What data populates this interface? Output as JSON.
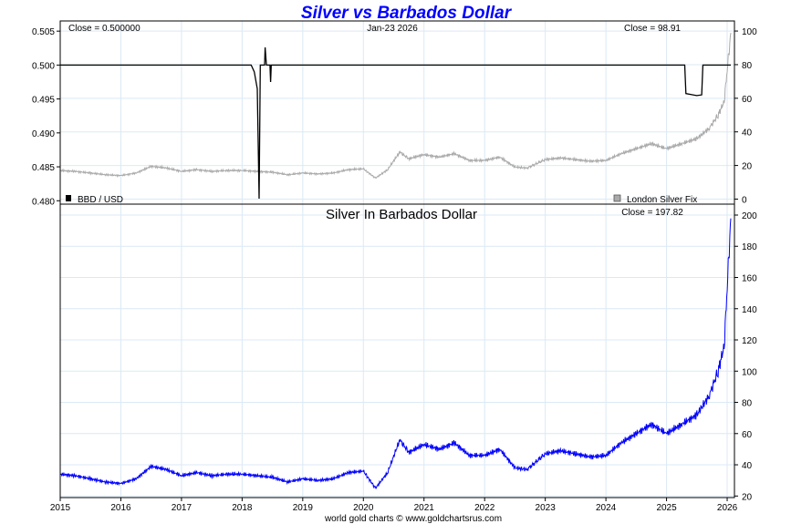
{
  "chart_data": [
    {
      "type": "line",
      "title": "Silver vs Barbados Dollar",
      "date_label": "Jan-23  2026",
      "left_close": "Close = 0.500000",
      "right_close": "Close = 98.91",
      "legend_left": "BBD / USD",
      "legend_right": "London Silver Fix",
      "left_ylim": [
        0.4795,
        0.5065
      ],
      "left_ticks": [
        "0.505",
        "0.500",
        "0.495",
        "0.490",
        "0.485",
        "0.480"
      ],
      "right_ylim": [
        -3,
        106
      ],
      "right_ticks": [
        "100",
        "80",
        "60",
        "40",
        "20",
        "0"
      ],
      "series": [
        {
          "name": "BBD / USD",
          "axis": "left",
          "color": "#000000",
          "points": [
            [
              2015.0,
              0.5
            ],
            [
              2018.15,
              0.5
            ],
            [
              2018.2,
              0.499
            ],
            [
              2018.25,
              0.4965
            ],
            [
              2018.28,
              0.4803
            ],
            [
              2018.3,
              0.5
            ],
            [
              2018.37,
              0.5
            ],
            [
              2018.38,
              0.5026
            ],
            [
              2018.4,
              0.5
            ],
            [
              2018.46,
              0.5
            ],
            [
              2018.47,
              0.4975
            ],
            [
              2018.48,
              0.5
            ],
            [
              2025.3,
              0.5
            ],
            [
              2025.32,
              0.4958
            ],
            [
              2025.5,
              0.4955
            ],
            [
              2025.58,
              0.4956
            ],
            [
              2025.6,
              0.5
            ],
            [
              2026.06,
              0.5
            ]
          ]
        },
        {
          "name": "London Silver Fix",
          "axis": "right",
          "color": "#aaaaaa",
          "points": [
            [
              2015.0,
              17.0
            ],
            [
              2015.25,
              16.5
            ],
            [
              2015.5,
              15.5
            ],
            [
              2015.75,
              14.5
            ],
            [
              2016.0,
              14.0
            ],
            [
              2016.25,
              15.5
            ],
            [
              2016.5,
              19.5
            ],
            [
              2016.75,
              18.5
            ],
            [
              2017.0,
              16.5
            ],
            [
              2017.25,
              17.5
            ],
            [
              2017.5,
              16.5
            ],
            [
              2017.75,
              17.0
            ],
            [
              2018.0,
              17.0
            ],
            [
              2018.25,
              16.5
            ],
            [
              2018.5,
              16.0
            ],
            [
              2018.75,
              14.5
            ],
            [
              2019.0,
              15.5
            ],
            [
              2019.25,
              15.0
            ],
            [
              2019.5,
              15.5
            ],
            [
              2019.75,
              17.5
            ],
            [
              2020.0,
              18.0
            ],
            [
              2020.2,
              12.5
            ],
            [
              2020.4,
              17.5
            ],
            [
              2020.6,
              28.0
            ],
            [
              2020.75,
              24.0
            ],
            [
              2021.0,
              26.5
            ],
            [
              2021.25,
              25.0
            ],
            [
              2021.5,
              27.0
            ],
            [
              2021.75,
              23.0
            ],
            [
              2022.0,
              23.0
            ],
            [
              2022.25,
              25.0
            ],
            [
              2022.5,
              19.0
            ],
            [
              2022.7,
              18.5
            ],
            [
              2023.0,
              23.5
            ],
            [
              2023.25,
              24.5
            ],
            [
              2023.5,
              23.5
            ],
            [
              2023.75,
              22.5
            ],
            [
              2024.0,
              23.0
            ],
            [
              2024.25,
              27.0
            ],
            [
              2024.5,
              30.0
            ],
            [
              2024.75,
              33.0
            ],
            [
              2025.0,
              30.0
            ],
            [
              2025.25,
              33.0
            ],
            [
              2025.5,
              36.0
            ],
            [
              2025.7,
              42.0
            ],
            [
              2025.85,
              50.0
            ],
            [
              2025.95,
              58.0
            ],
            [
              2026.06,
              98.91
            ]
          ]
        }
      ]
    },
    {
      "type": "line",
      "title": "Silver In Barbados Dollar",
      "close": "Close = 197.82",
      "ylim": [
        19,
        207
      ],
      "right_ticks": [
        "200",
        "180",
        "160",
        "140",
        "120",
        "100",
        "80",
        "60",
        "40",
        "20"
      ],
      "xlim": [
        2015.0,
        2026.12
      ],
      "x_ticks": [
        "2015",
        "2016",
        "2017",
        "2018",
        "2019",
        "2020",
        "2021",
        "2022",
        "2023",
        "2024",
        "2025",
        "2026"
      ],
      "series": [
        {
          "name": "Silver In Barbados Dollar",
          "color": "#0000ff",
          "points": [
            [
              2015.0,
              34.0
            ],
            [
              2015.25,
              33.0
            ],
            [
              2015.5,
              31.0
            ],
            [
              2015.75,
              29.0
            ],
            [
              2016.0,
              28.0
            ],
            [
              2016.25,
              31.0
            ],
            [
              2016.5,
              39.0
            ],
            [
              2016.75,
              37.0
            ],
            [
              2017.0,
              33.0
            ],
            [
              2017.25,
              35.0
            ],
            [
              2017.5,
              33.0
            ],
            [
              2017.75,
              34.0
            ],
            [
              2018.0,
              34.0
            ],
            [
              2018.25,
              33.0
            ],
            [
              2018.5,
              32.0
            ],
            [
              2018.75,
              29.0
            ],
            [
              2019.0,
              31.0
            ],
            [
              2019.25,
              30.0
            ],
            [
              2019.5,
              31.0
            ],
            [
              2019.75,
              35.0
            ],
            [
              2020.0,
              36.0
            ],
            [
              2020.2,
              25.0
            ],
            [
              2020.4,
              35.0
            ],
            [
              2020.6,
              56.0
            ],
            [
              2020.75,
              48.0
            ],
            [
              2021.0,
              53.0
            ],
            [
              2021.25,
              50.0
            ],
            [
              2021.5,
              54.0
            ],
            [
              2021.75,
              46.0
            ],
            [
              2022.0,
              46.0
            ],
            [
              2022.25,
              50.0
            ],
            [
              2022.5,
              38.0
            ],
            [
              2022.7,
              37.0
            ],
            [
              2023.0,
              47.0
            ],
            [
              2023.25,
              49.0
            ],
            [
              2023.5,
              47.0
            ],
            [
              2023.75,
              45.0
            ],
            [
              2024.0,
              46.0
            ],
            [
              2024.25,
              54.0
            ],
            [
              2024.5,
              60.0
            ],
            [
              2024.75,
              66.0
            ],
            [
              2025.0,
              60.0
            ],
            [
              2025.25,
              66.0
            ],
            [
              2025.5,
              72.0
            ],
            [
              2025.7,
              84.0
            ],
            [
              2025.85,
              100.0
            ],
            [
              2025.95,
              116.0
            ],
            [
              2026.06,
              197.82
            ]
          ]
        }
      ]
    }
  ],
  "footer": "world gold charts © www.goldchartsrus.com"
}
